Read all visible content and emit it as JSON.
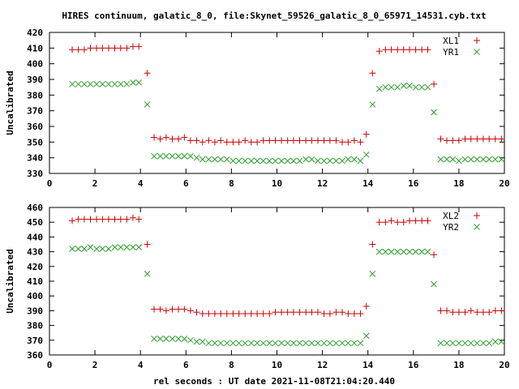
{
  "title": "HIRES continuum, galatic_8_0, file:Skynet_59526_galatic_8_0_65971_14531.cyb.txt",
  "xlabel": "rel seconds : UT date 2021-11-08T21:04:20.440",
  "colors": {
    "series_plus": "#cc0000",
    "series_x": "#2ca02c",
    "axis": "#000000"
  },
  "chart_data": [
    {
      "type": "scatter",
      "ylabel": "Uncalibrated",
      "xlim": [
        0,
        20
      ],
      "ylim": [
        330,
        420
      ],
      "xticks": [
        0,
        2,
        4,
        6,
        8,
        10,
        12,
        14,
        16,
        18,
        20
      ],
      "yticks": [
        330,
        340,
        350,
        360,
        370,
        380,
        390,
        400,
        410,
        420
      ],
      "legend_position": "top-right",
      "series": [
        {
          "name": "XL1",
          "marker": "plus",
          "x": [
            1.0,
            1.27,
            1.53,
            1.8,
            2.07,
            2.33,
            2.6,
            2.87,
            3.13,
            3.4,
            3.67,
            3.93,
            4.3,
            4.6,
            4.87,
            5.13,
            5.4,
            5.67,
            5.93,
            6.2,
            6.47,
            6.73,
            7.0,
            7.27,
            7.53,
            7.8,
            8.07,
            8.33,
            8.6,
            8.87,
            9.13,
            9.4,
            9.67,
            9.93,
            10.2,
            10.47,
            10.73,
            11.0,
            11.27,
            11.53,
            11.8,
            12.07,
            12.33,
            12.6,
            12.87,
            13.13,
            13.4,
            13.67,
            13.93,
            14.2,
            14.5,
            14.77,
            15.03,
            15.3,
            15.57,
            15.83,
            16.1,
            16.37,
            16.63,
            16.9,
            17.2,
            17.47,
            17.73,
            18.0,
            18.27,
            18.53,
            18.8,
            19.07,
            19.33,
            19.6,
            19.87
          ],
          "y": [
            409,
            409,
            409,
            410,
            410,
            410,
            410,
            410,
            410,
            410,
            411,
            411,
            394,
            353,
            352,
            353,
            352,
            352,
            353,
            351,
            351,
            350,
            351,
            350,
            351,
            350,
            350,
            350,
            351,
            350,
            350,
            351,
            351,
            351,
            351,
            351,
            351,
            351,
            351,
            351,
            351,
            351,
            351,
            351,
            350,
            350,
            351,
            350,
            355,
            394,
            408,
            409,
            409,
            409,
            409,
            409,
            409,
            409,
            409,
            387,
            352,
            351,
            351,
            351,
            352,
            352,
            352,
            352,
            352,
            352,
            352
          ]
        },
        {
          "name": "YR1",
          "marker": "x",
          "x": [
            1.0,
            1.27,
            1.53,
            1.8,
            2.07,
            2.33,
            2.6,
            2.87,
            3.13,
            3.4,
            3.67,
            3.93,
            4.3,
            4.6,
            4.87,
            5.13,
            5.4,
            5.67,
            5.93,
            6.2,
            6.47,
            6.73,
            7.0,
            7.27,
            7.53,
            7.8,
            8.07,
            8.33,
            8.6,
            8.87,
            9.13,
            9.4,
            9.67,
            9.93,
            10.2,
            10.47,
            10.73,
            11.0,
            11.27,
            11.53,
            11.8,
            12.07,
            12.33,
            12.6,
            12.87,
            13.13,
            13.4,
            13.67,
            13.93,
            14.2,
            14.5,
            14.77,
            15.03,
            15.3,
            15.57,
            15.83,
            16.1,
            16.37,
            16.63,
            16.9,
            17.2,
            17.47,
            17.73,
            18.0,
            18.27,
            18.53,
            18.8,
            19.07,
            19.33,
            19.6,
            19.87
          ],
          "y": [
            387,
            387,
            387,
            387,
            387,
            387,
            387,
            387,
            387,
            387,
            388,
            388,
            374,
            341,
            341,
            341,
            341,
            341,
            341,
            341,
            340,
            339,
            339,
            339,
            339,
            339,
            338,
            338,
            338,
            338,
            338,
            338,
            338,
            338,
            338,
            338,
            338,
            338,
            339,
            339,
            338,
            338,
            338,
            338,
            338,
            339,
            339,
            338,
            342,
            374,
            384,
            385,
            385,
            385,
            386,
            386,
            385,
            385,
            385,
            369,
            339,
            339,
            339,
            338,
            339,
            339,
            339,
            339,
            339,
            339,
            339
          ]
        }
      ]
    },
    {
      "type": "scatter",
      "ylabel": "Uncalibrated",
      "xlim": [
        0,
        20
      ],
      "ylim": [
        360,
        460
      ],
      "xticks": [
        0,
        2,
        4,
        6,
        8,
        10,
        12,
        14,
        16,
        18,
        20
      ],
      "yticks": [
        360,
        370,
        380,
        390,
        400,
        410,
        420,
        430,
        440,
        450,
        460
      ],
      "legend_position": "top-right",
      "series": [
        {
          "name": "XL2",
          "marker": "plus",
          "x": [
            1.0,
            1.27,
            1.53,
            1.8,
            2.07,
            2.33,
            2.6,
            2.87,
            3.13,
            3.4,
            3.67,
            3.93,
            4.3,
            4.6,
            4.87,
            5.13,
            5.4,
            5.67,
            5.93,
            6.2,
            6.47,
            6.73,
            7.0,
            7.27,
            7.53,
            7.8,
            8.07,
            8.33,
            8.6,
            8.87,
            9.13,
            9.4,
            9.67,
            9.93,
            10.2,
            10.47,
            10.73,
            11.0,
            11.27,
            11.53,
            11.8,
            12.07,
            12.33,
            12.6,
            12.87,
            13.13,
            13.4,
            13.67,
            13.93,
            14.2,
            14.5,
            14.77,
            15.03,
            15.3,
            15.57,
            15.83,
            16.1,
            16.37,
            16.63,
            16.9,
            17.2,
            17.47,
            17.73,
            18.0,
            18.27,
            18.53,
            18.8,
            19.07,
            19.33,
            19.6,
            19.87
          ],
          "y": [
            451,
            452,
            452,
            452,
            452,
            452,
            452,
            452,
            452,
            452,
            453,
            452,
            435,
            391,
            391,
            390,
            391,
            391,
            391,
            390,
            389,
            388,
            388,
            388,
            388,
            388,
            388,
            388,
            388,
            388,
            388,
            388,
            388,
            389,
            389,
            389,
            389,
            389,
            389,
            389,
            389,
            388,
            388,
            389,
            389,
            388,
            388,
            388,
            393,
            435,
            450,
            450,
            451,
            450,
            450,
            451,
            451,
            451,
            451,
            428,
            390,
            390,
            389,
            389,
            389,
            390,
            389,
            389,
            389,
            390,
            390
          ]
        },
        {
          "name": "YR2",
          "marker": "x",
          "x": [
            1.0,
            1.27,
            1.53,
            1.8,
            2.07,
            2.33,
            2.6,
            2.87,
            3.13,
            3.4,
            3.67,
            3.93,
            4.3,
            4.6,
            4.87,
            5.13,
            5.4,
            5.67,
            5.93,
            6.2,
            6.47,
            6.73,
            7.0,
            7.27,
            7.53,
            7.8,
            8.07,
            8.33,
            8.6,
            8.87,
            9.13,
            9.4,
            9.67,
            9.93,
            10.2,
            10.47,
            10.73,
            11.0,
            11.27,
            11.53,
            11.8,
            12.07,
            12.33,
            12.6,
            12.87,
            13.13,
            13.4,
            13.67,
            13.93,
            14.2,
            14.5,
            14.77,
            15.03,
            15.3,
            15.57,
            15.83,
            16.1,
            16.37,
            16.63,
            16.9,
            17.2,
            17.47,
            17.73,
            18.0,
            18.27,
            18.53,
            18.8,
            19.07,
            19.33,
            19.6,
            19.87
          ],
          "y": [
            432,
            432,
            432,
            433,
            432,
            432,
            432,
            433,
            433,
            433,
            433,
            433,
            415,
            371,
            371,
            371,
            371,
            371,
            371,
            370,
            369,
            369,
            368,
            368,
            368,
            368,
            368,
            368,
            368,
            368,
            368,
            368,
            368,
            368,
            368,
            368,
            368,
            368,
            368,
            368,
            368,
            368,
            368,
            368,
            368,
            368,
            368,
            368,
            373,
            415,
            430,
            430,
            430,
            430,
            430,
            430,
            430,
            430,
            430,
            408,
            368,
            368,
            368,
            368,
            368,
            368,
            368,
            368,
            368,
            369,
            369
          ]
        }
      ]
    }
  ]
}
